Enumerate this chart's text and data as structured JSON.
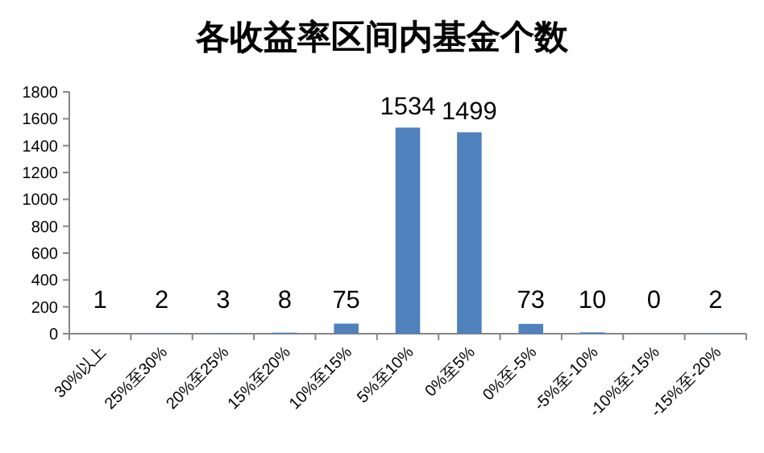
{
  "chart_data": {
    "type": "bar",
    "title": "各收益率区间内基金个数",
    "categories": [
      "30%以上",
      "25%至30%",
      "20%至25%",
      "15%至20%",
      "10%至15%",
      "5%至10%",
      "0%至5%",
      "0%至-5%",
      "-5%至-10%",
      "-10%至-15%",
      "-15%至-20%"
    ],
    "values": [
      1,
      2,
      3,
      8,
      75,
      1534,
      1499,
      73,
      10,
      0,
      2
    ],
    "color": "#4f81bd",
    "ylim": [
      0,
      1800
    ],
    "yticks": [
      0,
      200,
      400,
      600,
      800,
      1000,
      1200,
      1400,
      1600,
      1800
    ],
    "data_labels": true,
    "grid": false
  }
}
